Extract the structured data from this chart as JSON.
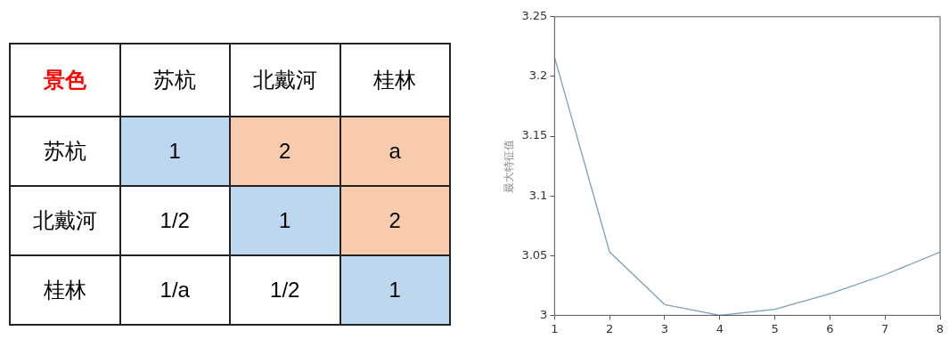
{
  "chart_data": [
    {
      "type": "other",
      "title": "景色",
      "categories": [
        "苏杭",
        "北戴河",
        "桂林"
      ],
      "y_categories": [
        "苏杭",
        "北戴河",
        "桂林"
      ],
      "cell_labels": [
        [
          "1",
          "2",
          "a"
        ],
        [
          "1/2",
          "1",
          "2"
        ],
        [
          "1/a",
          "1/2",
          "1"
        ]
      ],
      "colors": [
        [
          "#bdd7ee",
          "#f8cbad",
          "#f8cbad"
        ],
        [
          "#ffffff",
          "#bdd7ee",
          "#f8cbad"
        ],
        [
          "#ffffff",
          "#ffffff",
          "#bdd7ee"
        ]
      ]
    },
    {
      "type": "line",
      "ylabel": "最大特征值",
      "x": [
        1,
        2,
        3,
        4,
        5,
        6,
        7,
        8
      ],
      "series": [
        {
          "color": "#7a9fba",
          "values": [
            3.216,
            3.053,
            3.009,
            3.0,
            3.005,
            3.018,
            3.034,
            3.053
          ]
        }
      ],
      "xlim": [
        1,
        8
      ],
      "xticks": [
        1,
        2,
        3,
        4,
        5,
        6,
        7,
        8
      ],
      "ylim": [
        3,
        3.25
      ],
      "yticks": [
        3,
        3.05,
        3.1,
        3.15,
        3.2,
        3.25
      ],
      "grid": false,
      "legend": false,
      "marker": "none",
      "line_style": "solid"
    }
  ]
}
